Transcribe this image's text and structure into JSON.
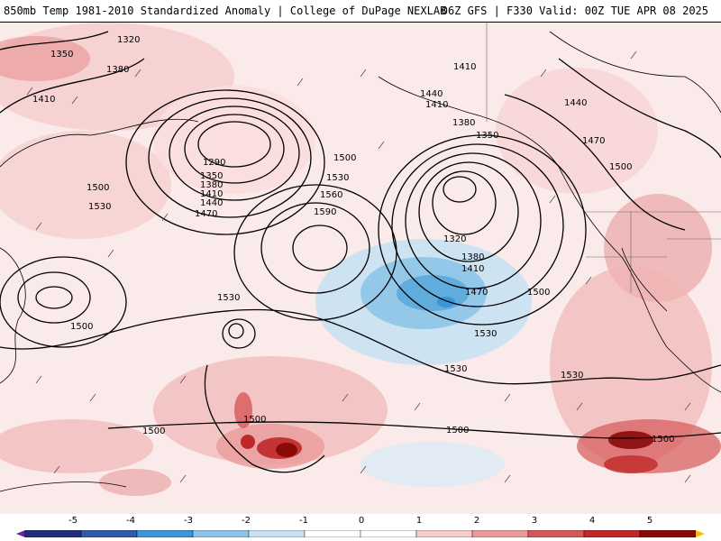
{
  "header": {
    "title_left": "850mb Temp 1981-2010 Standardized Anomaly | College of DuPage NEXLAB",
    "title_right": "06Z GFS | F330 Valid: 00Z TUE APR 08 2025"
  },
  "colorbar": {
    "ticks": [
      "-5",
      "-4",
      "-3",
      "-2",
      "-1",
      "0",
      "1",
      "2",
      "3",
      "4",
      "5"
    ],
    "colors": [
      "#6a1fa0",
      "#1e2f7a",
      "#2f5aa8",
      "#3b95d8",
      "#8ec4e8",
      "#c9e2f3",
      "#ffffff",
      "#ffffff",
      "#f6cccc",
      "#e89a9a",
      "#d65858",
      "#c02828",
      "#8a0a0a",
      "#f0c000"
    ]
  },
  "map": {
    "contour_labels": [
      {
        "id": "c1320a",
        "text": "1320"
      },
      {
        "id": "c1350a",
        "text": "1350"
      },
      {
        "id": "c1380a",
        "text": "1380"
      },
      {
        "id": "c1410a",
        "text": "1410"
      },
      {
        "id": "c1500a",
        "text": "1500"
      },
      {
        "id": "c1530a",
        "text": "1530"
      },
      {
        "id": "c1290",
        "text": "1290"
      },
      {
        "id": "c1350b",
        "text": "1350"
      },
      {
        "id": "c1380b",
        "text": "1380"
      },
      {
        "id": "c1410b",
        "text": "1410"
      },
      {
        "id": "c1440b",
        "text": "1440"
      },
      {
        "id": "c1470b",
        "text": "1470"
      },
      {
        "id": "c1500b",
        "text": "1500"
      },
      {
        "id": "c1530b",
        "text": "1530"
      },
      {
        "id": "c1560",
        "text": "1560"
      },
      {
        "id": "c1590",
        "text": "1590"
      },
      {
        "id": "c1410c",
        "text": "1410"
      },
      {
        "id": "c1440c",
        "text": "1440"
      },
      {
        "id": "c1410d",
        "text": "1410"
      },
      {
        "id": "c1380c",
        "text": "1380"
      },
      {
        "id": "c1350c",
        "text": "1350"
      },
      {
        "id": "c1320c",
        "text": "1320"
      },
      {
        "id": "c1380d",
        "text": "1380"
      },
      {
        "id": "c1410e",
        "text": "1410"
      },
      {
        "id": "c1470c",
        "text": "1470"
      },
      {
        "id": "c1500c",
        "text": "1500"
      },
      {
        "id": "c1530c",
        "text": "1530"
      },
      {
        "id": "c1530d",
        "text": "1530"
      },
      {
        "id": "c1530e",
        "text": "1530"
      },
      {
        "id": "c1530f",
        "text": "1530"
      },
      {
        "id": "c1500d",
        "text": "1500"
      },
      {
        "id": "c1500e",
        "text": "1500"
      },
      {
        "id": "c1500f",
        "text": "1500"
      },
      {
        "id": "c1500g",
        "text": "1500"
      },
      {
        "id": "c1500h",
        "text": "1500"
      },
      {
        "id": "c1440d",
        "text": "1440"
      },
      {
        "id": "c1470d",
        "text": "1470"
      },
      {
        "id": "c1500i",
        "text": "1500"
      }
    ]
  }
}
